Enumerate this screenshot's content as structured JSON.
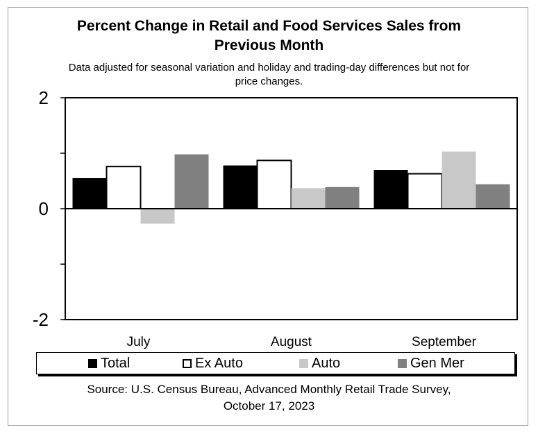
{
  "title": {
    "line1": "Percent Change in Retail and Food Services Sales from",
    "line2": "Previous Month"
  },
  "subtitle": {
    "line1": "Data adjusted for seasonal variation and holiday and trading-day differences but not for",
    "line2": "price changes."
  },
  "source": {
    "line1": "Source: U.S. Census Bureau, Advanced Monthly Retail Trade Survey,",
    "line2": "October 17, 2023"
  },
  "chart_data": {
    "type": "bar",
    "categories": [
      "July",
      "August",
      "September"
    ],
    "series": [
      {
        "name": "Total",
        "values": [
          0.55,
          0.78,
          0.7
        ],
        "color": "#000000"
      },
      {
        "name": "Ex Auto",
        "values": [
          0.76,
          0.87,
          0.63
        ],
        "color": "#ffffff"
      },
      {
        "name": "Auto",
        "values": [
          -0.27,
          0.37,
          1.03
        ],
        "color": "#c8c8c8"
      },
      {
        "name": "Gen Mer",
        "values": [
          0.98,
          0.39,
          0.44
        ],
        "color": "#808080"
      }
    ],
    "ylim": [
      -2,
      2
    ],
    "yticks": [
      -2,
      0,
      2
    ],
    "legend_position": "bottom",
    "grid": false
  }
}
